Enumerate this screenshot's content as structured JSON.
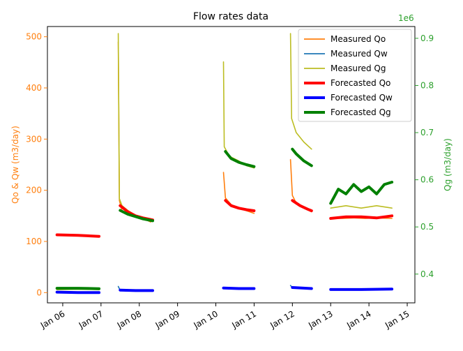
{
  "chart_data": {
    "type": "line",
    "title": "Flow rates data",
    "xlabel": "",
    "ylabel_left": "Qo & Qw (m3/day)",
    "ylabel_right": "Qg (m3/day)",
    "right_axis_multiplier": "1e6",
    "xlim": [
      5.6,
      15.2
    ],
    "ylim_left": [
      -20,
      520
    ],
    "ylim_right": [
      0.339,
      0.925
    ],
    "x_ticks": [
      {
        "value": 6,
        "label": "Jan 06"
      },
      {
        "value": 7,
        "label": "Jan 07"
      },
      {
        "value": 8,
        "label": "Jan 08"
      },
      {
        "value": 9,
        "label": "Jan 09"
      },
      {
        "value": 10,
        "label": "Jan 10"
      },
      {
        "value": 11,
        "label": "Jan 11"
      },
      {
        "value": 12,
        "label": "Jan 12"
      },
      {
        "value": 13,
        "label": "Jan 13"
      },
      {
        "value": 14,
        "label": "Jan 14"
      },
      {
        "value": 15,
        "label": "Jan 15"
      }
    ],
    "y_ticks_left": [
      0,
      100,
      200,
      300,
      400,
      500
    ],
    "y_ticks_right": [
      0.4,
      0.5,
      0.6,
      0.7,
      0.8,
      0.9
    ],
    "legend_position": "top-right",
    "colors": {
      "measured_qo": "#ff7f0e",
      "measured_qw": "#1f77b4",
      "measured_qg": "#bcbd22",
      "forecasted_qo": "#ff0000",
      "forecasted_qw": "#0000ff",
      "forecasted_qg": "#008000",
      "axis_left": "#ff7f0e",
      "axis_right": "#2ca02c"
    },
    "legend": [
      {
        "key": "measured_qo",
        "label": "Measured Qo",
        "width": "thin"
      },
      {
        "key": "measured_qw",
        "label": "Measured Qw",
        "width": "thin"
      },
      {
        "key": "measured_qg",
        "label": "Measured Qg",
        "width": "thin"
      },
      {
        "key": "forecasted_qo",
        "label": "Forecasted Qo",
        "width": "thick"
      },
      {
        "key": "forecasted_qw",
        "label": "Forecasted Qw",
        "width": "thick"
      },
      {
        "key": "forecasted_qg",
        "label": "Forecasted Qg",
        "width": "thick"
      }
    ],
    "series": [
      {
        "name": "Measured Qo",
        "axis": "left",
        "segments": [
          {
            "x": [
              5.85,
              6.2,
              6.6,
              6.95
            ],
            "y": [
              112,
              113,
              111,
              110
            ]
          },
          {
            "x": [
              7.45,
              7.48,
              7.55,
              7.7,
              7.9,
              8.1,
              8.3
            ],
            "y": [
              490,
              180,
              160,
              155,
              150,
              145,
              138
            ]
          },
          {
            "x": [
              10.2,
              10.25,
              10.4,
              10.6,
              10.8,
              11.0
            ],
            "y": [
              235,
              185,
              172,
              165,
              160,
              155
            ]
          },
          {
            "x": [
              11.95,
              12.0,
              12.1,
              12.3,
              12.5
            ],
            "y": [
              260,
              190,
              175,
              165,
              158
            ]
          },
          {
            "x": [
              13.0,
              13.3,
              13.6,
              13.9,
              14.2,
              14.6
            ],
            "y": [
              145,
              145,
              146,
              145,
              146,
              145
            ]
          }
        ]
      },
      {
        "name": "Measured Qw",
        "axis": "left",
        "segments": [
          {
            "x": [
              5.85,
              6.4,
              6.95
            ],
            "y": [
              1,
              1,
              1
            ]
          },
          {
            "x": [
              7.45,
              7.5,
              7.9,
              8.35
            ],
            "y": [
              12,
              5,
              4,
              4
            ]
          },
          {
            "x": [
              10.2,
              10.6,
              11.0
            ],
            "y": [
              10,
              9,
              8
            ]
          },
          {
            "x": [
              11.95,
              12.0,
              12.5
            ],
            "y": [
              14,
              10,
              9
            ]
          },
          {
            "x": [
              13.0,
              13.8,
              14.6
            ],
            "y": [
              7,
              7,
              7
            ]
          }
        ]
      },
      {
        "name": "Measured Qg",
        "axis": "right",
        "segments": [
          {
            "x": [
              5.85,
              6.4,
              6.95
            ],
            "y": [
              0.367,
              0.368,
              0.367
            ]
          },
          {
            "x": [
              7.45,
              7.48,
              7.55,
              7.7,
              7.9,
              8.1,
              8.35
            ],
            "y": [
              0.91,
              0.56,
              0.545,
              0.535,
              0.525,
              0.52,
              0.515
            ]
          },
          {
            "x": [
              10.2,
              10.22,
              10.35,
              10.6,
              10.8,
              11.0
            ],
            "y": [
              0.85,
              0.67,
              0.65,
              0.64,
              0.63,
              0.625
            ]
          },
          {
            "x": [
              11.95,
              11.98,
              12.1,
              12.3,
              12.5
            ],
            "y": [
              0.91,
              0.73,
              0.7,
              0.68,
              0.665
            ]
          },
          {
            "x": [
              13.0,
              13.4,
              13.8,
              14.2,
              14.6
            ],
            "y": [
              0.54,
              0.545,
              0.54,
              0.545,
              0.54
            ]
          }
        ]
      },
      {
        "name": "Forecasted Qo",
        "axis": "left",
        "segments": [
          {
            "x": [
              5.85,
              6.4,
              6.95
            ],
            "y": [
              113,
              112,
              110
            ]
          },
          {
            "x": [
              7.5,
              7.7,
              7.9,
              8.1,
              8.35
            ],
            "y": [
              170,
              158,
              150,
              146,
              142
            ]
          },
          {
            "x": [
              10.25,
              10.4,
              10.6,
              10.8,
              11.0
            ],
            "y": [
              180,
              170,
              165,
              162,
              160
            ]
          },
          {
            "x": [
              12.0,
              12.2,
              12.4,
              12.5
            ],
            "y": [
              180,
              170,
              163,
              160
            ]
          },
          {
            "x": [
              13.0,
              13.4,
              13.8,
              14.2,
              14.6
            ],
            "y": [
              145,
              148,
              148,
              146,
              150
            ]
          }
        ]
      },
      {
        "name": "Forecasted Qw",
        "axis": "left",
        "segments": [
          {
            "x": [
              5.85,
              6.4,
              6.95
            ],
            "y": [
              1,
              0,
              0
            ]
          },
          {
            "x": [
              7.5,
              7.9,
              8.35
            ],
            "y": [
              5,
              4,
              4
            ]
          },
          {
            "x": [
              10.2,
              10.6,
              11.0
            ],
            "y": [
              9,
              8,
              8
            ]
          },
          {
            "x": [
              12.0,
              12.25,
              12.5
            ],
            "y": [
              10,
              9,
              8
            ]
          },
          {
            "x": [
              13.0,
              13.8,
              14.6
            ],
            "y": [
              6,
              6,
              7
            ]
          }
        ]
      },
      {
        "name": "Forecasted Qg",
        "axis": "right",
        "segments": [
          {
            "x": [
              5.85,
              6.4,
              6.95
            ],
            "y": [
              0.37,
              0.37,
              0.369
            ]
          },
          {
            "x": [
              7.5,
              7.7,
              7.9,
              8.1,
              8.35
            ],
            "y": [
              0.535,
              0.527,
              0.522,
              0.517,
              0.513
            ]
          },
          {
            "x": [
              10.25,
              10.4,
              10.6,
              10.8,
              11.0
            ],
            "y": [
              0.66,
              0.645,
              0.637,
              0.632,
              0.628
            ]
          },
          {
            "x": [
              12.0,
              12.1,
              12.3,
              12.5
            ],
            "y": [
              0.665,
              0.655,
              0.64,
              0.63
            ]
          },
          {
            "x": [
              13.0,
              13.2,
              13.4,
              13.6,
              13.8,
              14.0,
              14.2,
              14.4,
              14.6
            ],
            "y": [
              0.55,
              0.58,
              0.57,
              0.59,
              0.575,
              0.585,
              0.57,
              0.59,
              0.595
            ]
          }
        ]
      }
    ]
  }
}
